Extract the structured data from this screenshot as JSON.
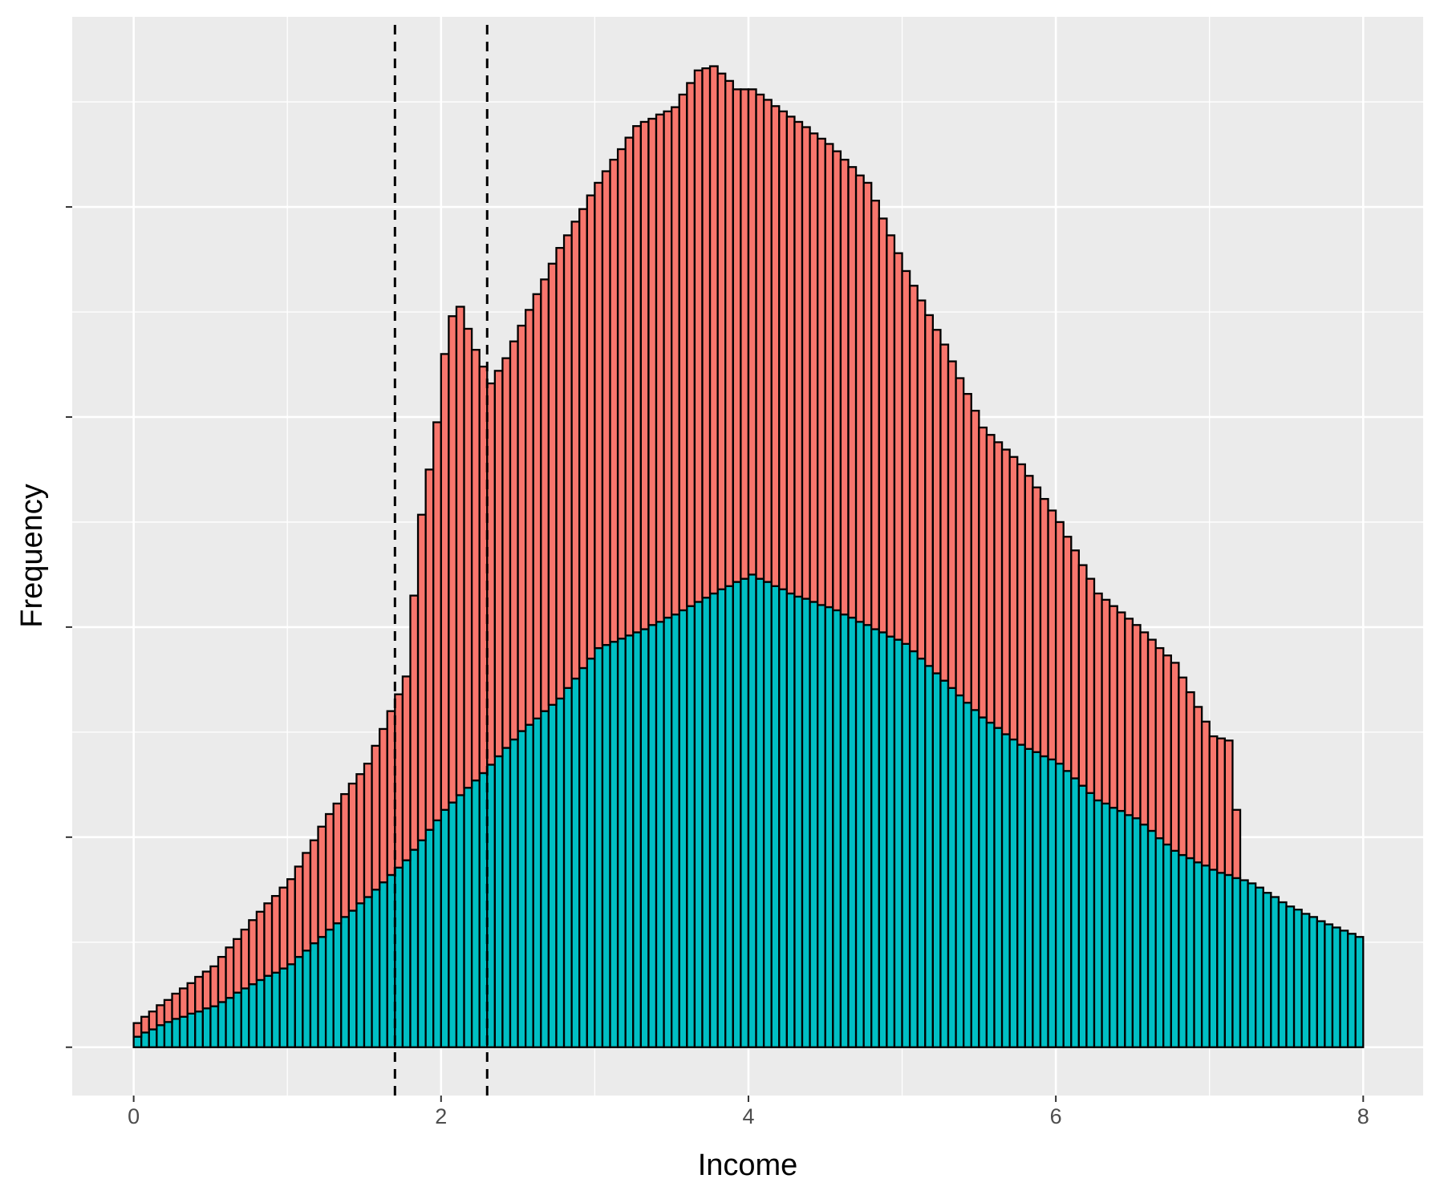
{
  "chart_data": {
    "type": "histogram",
    "x_label": "Income",
    "y_label": "Frequency",
    "xlim": [
      -0.4,
      8.39
    ],
    "xticks": [
      0,
      2,
      4,
      6,
      8
    ],
    "xminor": [
      1,
      3,
      5,
      7
    ],
    "ylim": [
      -46,
      981
    ],
    "ygrid": [
      0,
      200,
      400,
      600,
      800
    ],
    "yminor": [
      100,
      300,
      500,
      700,
      900
    ],
    "grid": true,
    "stacked": true,
    "vlines": [
      1.7,
      2.3
    ],
    "bins": [
      0,
      0.05,
      0.1,
      0.15,
      0.2,
      0.25,
      0.3,
      0.35,
      0.4,
      0.45,
      0.5,
      0.55,
      0.6,
      0.65,
      0.7,
      0.75,
      0.8,
      0.85,
      0.9,
      0.95,
      1,
      1.05,
      1.1,
      1.15,
      1.2,
      1.25,
      1.3,
      1.35,
      1.4,
      1.45,
      1.5,
      1.55,
      1.6,
      1.65,
      1.7,
      1.75,
      1.8,
      1.85,
      1.9,
      1.95,
      2,
      2.05,
      2.1,
      2.15,
      2.2,
      2.25,
      2.3,
      2.35,
      2.4,
      2.45,
      2.5,
      2.55,
      2.6,
      2.65,
      2.7,
      2.75,
      2.8,
      2.85,
      2.9,
      2.95,
      3,
      3.05,
      3.1,
      3.15,
      3.2,
      3.25,
      3.3,
      3.35,
      3.4,
      3.45,
      3.5,
      3.55,
      3.6,
      3.65,
      3.7,
      3.75,
      3.8,
      3.85,
      3.9,
      3.95,
      4,
      4.05,
      4.1,
      4.15,
      4.2,
      4.25,
      4.3,
      4.35,
      4.4,
      4.45,
      4.5,
      4.55,
      4.6,
      4.65,
      4.7,
      4.75,
      4.8,
      4.85,
      4.9,
      4.95,
      5,
      5.05,
      5.1,
      5.15,
      5.2,
      5.25,
      5.3,
      5.35,
      5.4,
      5.45,
      5.5,
      5.55,
      5.6,
      5.65,
      5.7,
      5.75,
      5.8,
      5.85,
      5.9,
      5.95,
      6,
      6.05,
      6.1,
      6.15,
      6.2,
      6.25,
      6.3,
      6.35,
      6.4,
      6.45,
      6.5,
      6.55,
      6.6,
      6.65,
      6.7,
      6.75,
      6.8,
      6.85,
      6.9,
      6.95,
      7,
      7.05,
      7.1,
      7.15,
      7.2,
      7.25,
      7.3,
      7.35,
      7.4,
      7.45,
      7.5,
      7.55,
      7.6,
      7.65,
      7.7,
      7.75,
      7.8,
      7.85,
      7.9,
      7.95,
      8
    ],
    "series": [
      {
        "color": "#00BFC4",
        "values": [
          10,
          14,
          17,
          21,
          24,
          27,
          29,
          32,
          34,
          37,
          39,
          43,
          47,
          52,
          56,
          60,
          64,
          68,
          71,
          75,
          79,
          86,
          92,
          99,
          105,
          112,
          118,
          124,
          130,
          137,
          143,
          150,
          157,
          164,
          171,
          178,
          188,
          197,
          207,
          216,
          226,
          233,
          240,
          247,
          254,
          261,
          269,
          277,
          285,
          293,
          301,
          307,
          313,
          320,
          326,
          332,
          342,
          351,
          361,
          370,
          380,
          383,
          386,
          389,
          392,
          395,
          398,
          402,
          405,
          409,
          412,
          416,
          420,
          424,
          428,
          432,
          436,
          439,
          443,
          446,
          450,
          446,
          443,
          439,
          436,
          432,
          429,
          427,
          424,
          421,
          419,
          416,
          412,
          409,
          405,
          402,
          398,
          395,
          391,
          388,
          384,
          377,
          370,
          363,
          356,
          349,
          342,
          335,
          328,
          321,
          314,
          309,
          304,
          298,
          293,
          288,
          284,
          281,
          277,
          274,
          270,
          263,
          256,
          249,
          242,
          235,
          232,
          228,
          225,
          221,
          218,
          212,
          206,
          199,
          193,
          187,
          183,
          180,
          176,
          173,
          169,
          166,
          164,
          161,
          159,
          156,
          152,
          147,
          143,
          138,
          134,
          131,
          127,
          124,
          120,
          117,
          114,
          111,
          108,
          105
        ]
      },
      {
        "color": "#F8766D",
        "values": [
          13,
          15,
          17,
          19,
          21,
          24,
          27,
          29,
          33,
          35,
          38,
          43,
          48,
          51,
          56,
          61,
          65,
          69,
          73,
          77,
          81,
          86,
          93,
          98,
          105,
          110,
          114,
          117,
          121,
          123,
          127,
          137,
          146,
          156,
          165,
          175,
          242,
          310,
          343,
          379,
          434,
          463,
          465,
          437,
          410,
          387,
          363,
          367,
          371,
          379,
          386,
          395,
          404,
          411,
          420,
          429,
          431,
          435,
          437,
          441,
          443,
          451,
          459,
          466,
          474,
          482,
          483,
          482,
          483,
          482,
          483,
          491,
          498,
          506,
          504,
          502,
          491,
          481,
          469,
          466,
          462,
          461,
          459,
          457,
          455,
          454,
          452,
          449,
          446,
          444,
          441,
          437,
          433,
          429,
          425,
          421,
          408,
          394,
          382,
          368,
          355,
          348,
          341,
          334,
          327,
          320,
          311,
          302,
          294,
          285,
          276,
          274,
          272,
          271,
          269,
          267,
          260,
          252,
          245,
          237,
          230,
          223,
          217,
          210,
          204,
          197,
          194,
          192,
          189,
          187,
          184,
          183,
          182,
          181,
          180,
          179,
          169,
          158,
          148,
          137,
          127,
          128,
          128,
          65,
          0,
          0,
          0,
          0,
          0,
          0,
          0,
          0,
          0,
          0,
          0,
          0,
          0,
          0,
          0,
          0
        ]
      }
    ]
  }
}
